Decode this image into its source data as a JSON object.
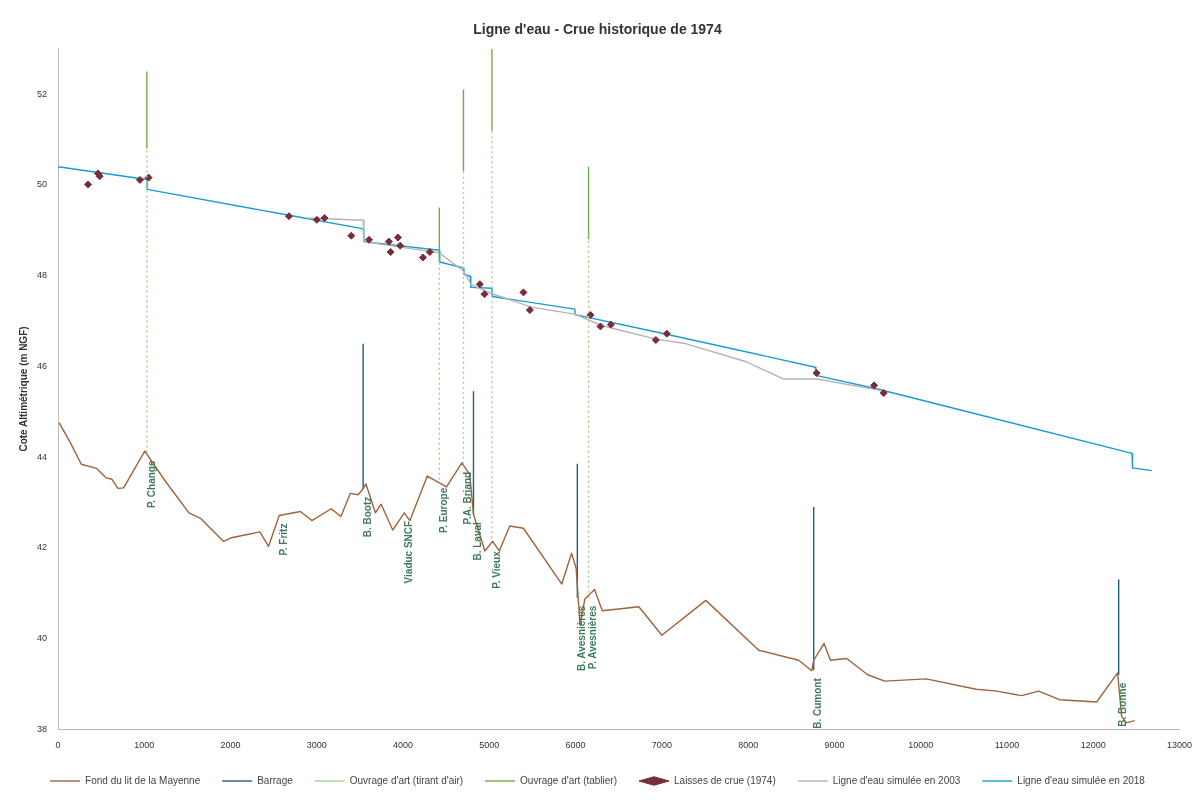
{
  "chart_data": {
    "type": "line",
    "title": "Ligne d'eau - Crue historique de 1974",
    "ylabel": "Cote Altimétrique (m NGF)",
    "xlim": [
      0,
      13000
    ],
    "xticks": [
      0,
      1000,
      2000,
      3000,
      4000,
      5000,
      6000,
      7000,
      8000,
      9000,
      10000,
      11000,
      12000,
      13000
    ],
    "ylim": [
      38,
      53
    ],
    "yticks": [
      38,
      40,
      42,
      44,
      46,
      48,
      50,
      52
    ],
    "legend": "bottom",
    "series": [
      {
        "name": "Fond du lit de la Mayenne",
        "color": "#a0643c",
        "x": [
          12,
          137,
          270,
          448,
          560,
          626,
          693,
          760,
          1006,
          1251,
          1518,
          1651,
          1919,
          2008,
          2340,
          2440,
          2565,
          2810,
          2943,
          3167,
          3279,
          3389,
          3479,
          3537,
          3569,
          3679,
          3746,
          3880,
          4014,
          4079,
          4281,
          4504,
          4681,
          4772,
          4816,
          4948,
          5038,
          5115,
          5237,
          5395,
          5840,
          5953,
          6006,
          6051,
          6107,
          6220,
          6309,
          6733,
          7000,
          7509,
          8123,
          8586,
          8737,
          8760,
          8880,
          8953,
          9142,
          9386,
          9583,
          10064,
          10643,
          10881,
          11170,
          11367,
          11611,
          12040,
          12283,
          12329,
          12381,
          12480
        ],
        "values": [
          44.76,
          44.34,
          43.84,
          43.75,
          43.54,
          43.51,
          43.31,
          43.32,
          44.13,
          43.45,
          42.77,
          42.65,
          42.14,
          42.22,
          42.35,
          42.03,
          42.71,
          42.8,
          42.6,
          42.86,
          42.69,
          43.2,
          43.17,
          43.3,
          43.41,
          42.77,
          42.96,
          42.39,
          42.77,
          42.6,
          43.58,
          43.34,
          43.87,
          43.62,
          42.74,
          41.93,
          42.14,
          41.93,
          42.48,
          42.43,
          41.2,
          41.88,
          41.55,
          40.3,
          40.87,
          41.08,
          40.61,
          40.7,
          40.07,
          40.84,
          39.74,
          39.52,
          39.29,
          39.52,
          39.89,
          39.52,
          39.56,
          39.2,
          39.06,
          39.11,
          38.88,
          38.84,
          38.74,
          38.84,
          38.65,
          38.6,
          39.24,
          38.29,
          38.14,
          38.19
        ]
      },
      {
        "name": "Barrage",
        "color": "#1f5f7f",
        "x": [
          3537,
          3537,
          null,
          4816,
          4816,
          null,
          6020,
          6020,
          null,
          8760,
          8760,
          null,
          12295,
          12295
        ],
        "values": [
          43.3,
          46.5,
          null,
          42.74,
          45.45,
          null,
          40.9,
          43.85,
          null,
          39.3,
          42.9,
          null,
          39.2,
          41.3
        ]
      },
      {
        "name": "Ouvrage d'art (tirant d'air)",
        "line_style": "dotted",
        "color": "#a8d08d",
        "x": [
          1030,
          1030,
          null,
          4420,
          4420,
          null,
          4700,
          4700,
          null,
          5030,
          5030,
          null,
          6150,
          6150
        ],
        "values": [
          44.1,
          50.8,
          null,
          43.5,
          48.3,
          null,
          43.85,
          50.3,
          null,
          42.1,
          51.2,
          null,
          40.9,
          48.8
        ]
      },
      {
        "name": "Ouvrage d'art (tablier)",
        "line_style": "solid",
        "color": "#70ad47",
        "x": [
          1030,
          1030,
          null,
          4420,
          4420,
          null,
          4700,
          4700,
          null,
          5030,
          5030,
          null,
          6150,
          6150
        ],
        "values": [
          50.8,
          52.5,
          null,
          48.3,
          49.5,
          null,
          50.3,
          52.1,
          null,
          51.2,
          53,
          null,
          48.8,
          50.4
        ]
      },
      {
        "name": "Laisses de crue (1974)",
        "type": "scatter",
        "marker": "diamond",
        "color": "#7b2c3b",
        "x": [
          348,
          463,
          483,
          950,
          1050,
          2677,
          3000,
          3090,
          3400,
          3605,
          3835,
          3856,
          3940,
          3967,
          4230,
          4310,
          4890,
          4944,
          5395,
          5470,
          6173,
          6288,
          6408,
          6930,
          7057,
          8794,
          9460,
          9571
        ],
        "values": [
          50.01,
          50.25,
          50.19,
          50.11,
          50.16,
          49.31,
          49.23,
          49.27,
          48.88,
          48.79,
          48.75,
          48.52,
          48.84,
          48.66,
          48.4,
          48.52,
          47.81,
          47.59,
          47.63,
          47.24,
          47.13,
          46.88,
          46.92,
          46.58,
          46.72,
          45.85,
          45.58,
          45.41
        ]
      },
      {
        "name": "Ligne d'eau simulée en 2003",
        "color": "#b4b4b4",
        "x": [
          2900,
          3540,
          3545,
          4420,
          4700,
          4790,
          5030,
          5500,
          5990,
          6300,
          6930,
          7254,
          7978,
          8413,
          8800,
          9500,
          9600
        ],
        "values": [
          49.27,
          49.22,
          48.75,
          48.5,
          48.1,
          47.8,
          47.6,
          47.3,
          47.15,
          46.9,
          46.6,
          46.51,
          46.1,
          45.72,
          45.72,
          45.48,
          45.42
        ]
      },
      {
        "name": "Ligne d'eau simulée en 2018",
        "color": "#1a9bd0",
        "x": [
          0,
          1030,
          1035,
          2680,
          3540,
          3545,
          4420,
          4425,
          4700,
          4705,
          4780,
          4785,
          5030,
          5035,
          5990,
          5995,
          7000,
          8780,
          8785,
          9500,
          12450,
          12455,
          12680
        ],
        "values": [
          50.4,
          50.12,
          49.9,
          49.33,
          49.03,
          48.75,
          48.56,
          48.3,
          48.17,
          48.03,
          47.98,
          47.74,
          47.72,
          47.54,
          47.26,
          47.14,
          46.73,
          45.98,
          45.8,
          45.5,
          44.08,
          43.76,
          43.7
        ]
      }
    ],
    "annotations": [
      {
        "text": "P. Change",
        "x": 1030,
        "y": 44.1
      },
      {
        "text": "P. Fritz",
        "x": 2565,
        "y": 42.71
      },
      {
        "text": "B. Bootz",
        "x": 3537,
        "y": 43.3
      },
      {
        "text": "Viaduc SNCF",
        "x": 4014,
        "y": 42.77
      },
      {
        "text": "P. Europe",
        "x": 4420,
        "y": 43.5
      },
      {
        "text": "P.A. Briand",
        "x": 4700,
        "y": 43.85
      },
      {
        "text": "B. Laval",
        "x": 4816,
        "y": 42.74
      },
      {
        "text": "P. Vieux",
        "x": 5030,
        "y": 42.1
      },
      {
        "text": "B. Avesnières",
        "x": 6020,
        "y": 40.9
      },
      {
        "text": "P. Avesnières",
        "x": 6150,
        "y": 40.9
      },
      {
        "text": "B. Cumont",
        "x": 8760,
        "y": 39.3
      },
      {
        "text": "B. Bonne",
        "x": 12295,
        "y": 39.2
      }
    ]
  }
}
